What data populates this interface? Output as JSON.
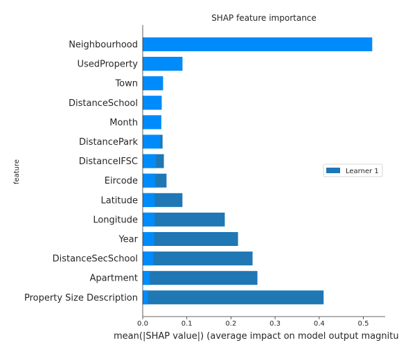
{
  "chart_data": {
    "type": "bar",
    "orientation": "horizontal",
    "title": "SHAP feature importance",
    "xlabel": "mean(|SHAP value|) (average impact on model output magnitude)",
    "ylabel": "feature",
    "xlim": [
      0,
      0.55
    ],
    "xticks": [
      "0.0",
      "0.1",
      "0.2",
      "0.3",
      "0.4",
      "0.5"
    ],
    "grid": false,
    "legend": {
      "position": "center-right",
      "entries": [
        "Learner 1"
      ]
    },
    "colors": {
      "total": "#008bfb",
      "learner": "#1f77b4",
      "axis": "#333333",
      "legend_border": "#cccccc"
    },
    "categories": [
      "Neighbourhood",
      "UsedProperty",
      "Town",
      "DistanceSchool",
      "Month",
      "DistancePark",
      "DistanceIFSC",
      "Eircode",
      "Latitude",
      "Longitude",
      "Year",
      "DistanceSecSchool",
      "Apartment",
      "Property Size Description"
    ],
    "series": [
      {
        "values": [
          0.52,
          0.09,
          0.046,
          0.043,
          0.042,
          0.04,
          0.03,
          0.029,
          0.027,
          0.027,
          0.026,
          0.024,
          0.016,
          0.012
        ]
      },
      {
        "name": "Learner 1",
        "values": [
          0.52,
          0.09,
          0.046,
          0.043,
          0.042,
          0.045,
          0.048,
          0.054,
          0.09,
          0.186,
          0.216,
          0.249,
          0.26,
          0.41
        ]
      }
    ]
  }
}
